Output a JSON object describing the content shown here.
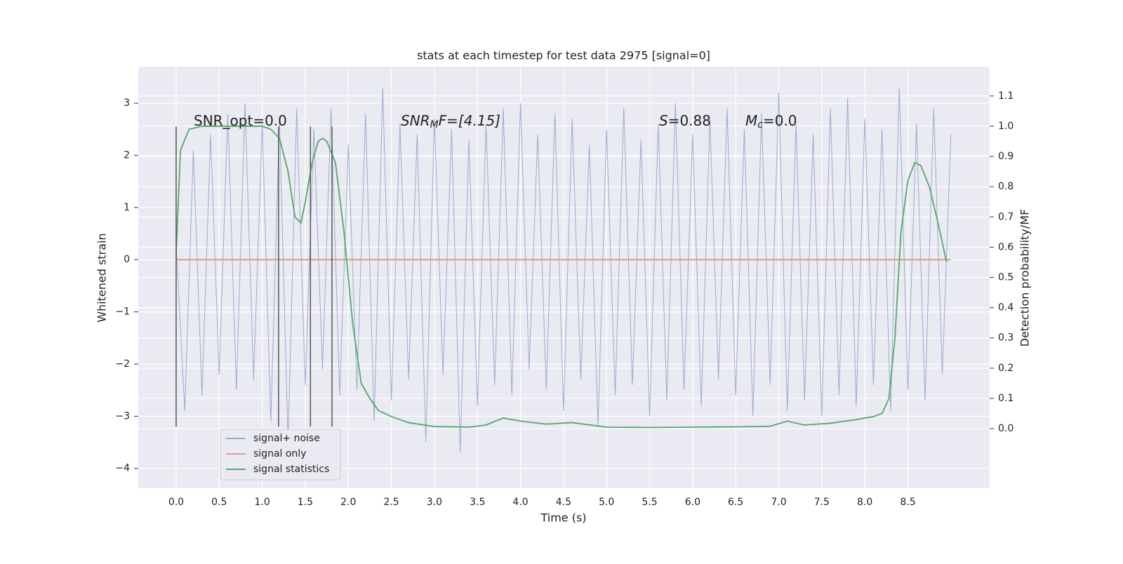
{
  "chart_data": {
    "type": "line",
    "title": "stats at each timestep for test data 2975 [signal=0]",
    "xlabel": "Time (s)",
    "ylabel": "Whitened strain",
    "y2label": "Detection probability/MF",
    "xlim": [
      -0.44,
      9.45
    ],
    "ylim": [
      -4.38,
      3.7
    ],
    "y2lim": [
      -0.197,
      1.197
    ],
    "xticks": [
      {
        "value": 0,
        "label": "0.0"
      },
      {
        "value": 0.5,
        "label": "0.5"
      },
      {
        "value": 1,
        "label": "1.0"
      },
      {
        "value": 1.5,
        "label": "1.5"
      },
      {
        "value": 2,
        "label": "2.0"
      },
      {
        "value": 2.5,
        "label": "2.5"
      },
      {
        "value": 3,
        "label": "3.0"
      },
      {
        "value": 3.5,
        "label": "3.5"
      },
      {
        "value": 4,
        "label": "4.0"
      },
      {
        "value": 4.5,
        "label": "4.5"
      },
      {
        "value": 5,
        "label": "5.0"
      },
      {
        "value": 5.5,
        "label": "5.5"
      },
      {
        "value": 6,
        "label": "6.0"
      },
      {
        "value": 6.5,
        "label": "6.5"
      },
      {
        "value": 7,
        "label": "7.0"
      },
      {
        "value": 7.5,
        "label": "7.5"
      },
      {
        "value": 8,
        "label": "8.0"
      },
      {
        "value": 8.5,
        "label": "8.5"
      }
    ],
    "yticks": [
      {
        "value": -4,
        "label": "−4"
      },
      {
        "value": -3,
        "label": "−3"
      },
      {
        "value": -2,
        "label": "−2"
      },
      {
        "value": -1,
        "label": "−1"
      },
      0,
      1,
      2,
      3
    ],
    "y2ticks": [
      {
        "value": 0,
        "label": "0.0"
      },
      {
        "value": 0.1,
        "label": "0.1"
      },
      {
        "value": 0.2,
        "label": "0.2"
      },
      {
        "value": 0.3,
        "label": "0.3"
      },
      {
        "value": 0.4,
        "label": "0.4"
      },
      {
        "value": 0.5,
        "label": "0.5"
      },
      {
        "value": 0.6,
        "label": "0.6"
      },
      {
        "value": 0.7,
        "label": "0.7"
      },
      {
        "value": 0.8,
        "label": "0.8"
      },
      {
        "value": 0.9,
        "label": "0.9"
      },
      {
        "value": 1,
        "label": "1.0"
      },
      {
        "value": 1.1,
        "label": "1.1"
      }
    ],
    "grid": true,
    "legend": "lower left",
    "series": [
      {
        "name": "signal+ noise",
        "color": "#9aabd0",
        "x": [
          0,
          0.1,
          0.2,
          0.3,
          0.4,
          0.5,
          0.6,
          0.7,
          0.8,
          0.9,
          1,
          1.1,
          1.2,
          1.3,
          1.4,
          1.5,
          1.6,
          1.7,
          1.8,
          1.9,
          2,
          2.1,
          2.2,
          2.3,
          2.4,
          2.5,
          2.6,
          2.7,
          2.8,
          2.9,
          3,
          3.1,
          3.2,
          3.3,
          3.4,
          3.5,
          3.6,
          3.7,
          3.8,
          3.9,
          4,
          4.1,
          4.2,
          4.3,
          4.4,
          4.5,
          4.6,
          4.7,
          4.8,
          4.9,
          5,
          5.1,
          5.2,
          5.3,
          5.4,
          5.5,
          5.6,
          5.7,
          5.8,
          5.9,
          6,
          6.1,
          6.2,
          6.3,
          6.4,
          6.5,
          6.6,
          6.7,
          6.8,
          6.9,
          7,
          7.1,
          7.2,
          7.3,
          7.4,
          7.5,
          7.6,
          7.7,
          7.8,
          7.9,
          8,
          8.1,
          8.2,
          8.3,
          8.4,
          8.5,
          8.6,
          8.7,
          8.8,
          8.9,
          9
        ],
        "values": [
          0.3,
          -2.9,
          2.1,
          -2.6,
          2.4,
          -2.2,
          2.8,
          -2.5,
          3.0,
          -2.3,
          2.6,
          -3.1,
          2.7,
          -3.5,
          2.9,
          -2.4,
          2.5,
          -2.1,
          2.9,
          -2.6,
          2.2,
          -2.5,
          2.8,
          -3.1,
          3.3,
          -2.7,
          2.6,
          -2.3,
          2.4,
          -3.5,
          2.7,
          -2.2,
          2.5,
          -3.7,
          2.3,
          -2.8,
          2.6,
          -2.4,
          2.9,
          -2.6,
          3.0,
          -2.1,
          2.4,
          -2.5,
          2.8,
          -2.9,
          2.7,
          -2.3,
          2.2,
          -3.2,
          2.5,
          -2.6,
          2.9,
          -2.4,
          2.3,
          -3.0,
          2.6,
          -2.7,
          3.0,
          -2.5,
          2.4,
          -2.8,
          2.7,
          -2.3,
          2.9,
          -2.6,
          2.5,
          -3.0,
          2.8,
          -2.4,
          3.2,
          -2.9,
          2.6,
          -2.7,
          2.4,
          -3.0,
          2.9,
          -2.6,
          3.1,
          -2.8,
          2.7,
          -2.4,
          2.5,
          -2.9,
          3.3,
          -2.5,
          2.6,
          -2.7,
          2.9,
          -2.2,
          2.4
        ]
      },
      {
        "name": "signal only",
        "color": "#dd9b84",
        "x": [
          0,
          9
        ],
        "values": [
          0,
          0
        ]
      },
      {
        "name": "signal statistics",
        "color": "#55a868",
        "axis": "y2",
        "x": [
          0,
          0.05,
          0.15,
          0.3,
          0.8,
          1.0,
          1.1,
          1.2,
          1.3,
          1.38,
          1.45,
          1.5,
          1.58,
          1.65,
          1.7,
          1.75,
          1.85,
          1.95,
          2.05,
          2.15,
          2.25,
          2.35,
          2.5,
          2.7,
          3.0,
          3.4,
          3.6,
          3.8,
          4.0,
          4.3,
          4.6,
          5.0,
          5.5,
          6.0,
          6.5,
          6.9,
          7.1,
          7.3,
          7.6,
          7.9,
          8.1,
          8.2,
          8.28,
          8.35,
          8.42,
          8.5,
          8.58,
          8.65,
          8.75,
          8.85,
          8.95
        ],
        "values": [
          0.58,
          0.92,
          0.99,
          1.0,
          1.0,
          1.0,
          0.99,
          0.96,
          0.85,
          0.7,
          0.68,
          0.75,
          0.88,
          0.95,
          0.96,
          0.95,
          0.88,
          0.65,
          0.35,
          0.15,
          0.1,
          0.06,
          0.04,
          0.02,
          0.007,
          0.005,
          0.012,
          0.035,
          0.025,
          0.015,
          0.02,
          0.005,
          0.004,
          0.005,
          0.006,
          0.008,
          0.025,
          0.012,
          0.018,
          0.03,
          0.04,
          0.05,
          0.1,
          0.3,
          0.65,
          0.82,
          0.88,
          0.87,
          0.8,
          0.68,
          0.55
        ]
      }
    ],
    "vlines": {
      "x": [
        0,
        1.19,
        1.56,
        1.81
      ],
      "ymin": -3.2,
      "ymax": 2.55,
      "color": "#555555"
    },
    "annotations": [
      {
        "text": "SNR_opt=0.0"
      },
      {
        "text": "SNR",
        "sub": "M",
        "rest": "F=[4.15]",
        "italic": true
      },
      {
        "text": "S",
        "rest": "=0.88",
        "italic": true
      },
      {
        "text": "M",
        "sub": "c",
        "rest": "=0.0",
        "italic": true
      }
    ]
  }
}
